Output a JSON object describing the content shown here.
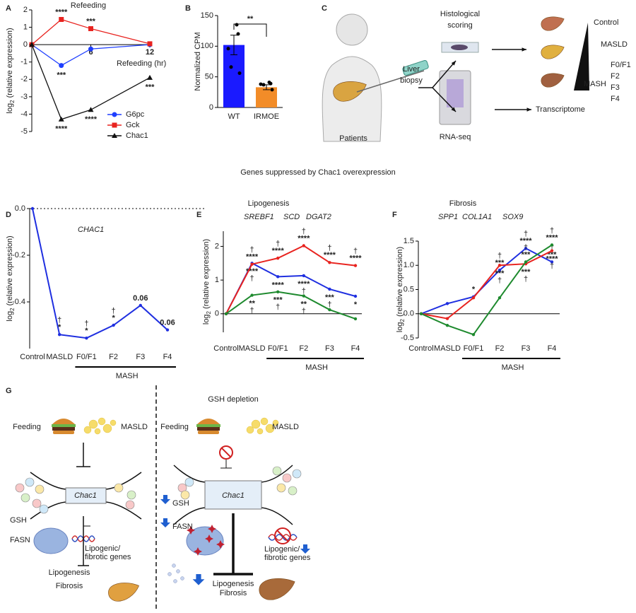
{
  "panel_labels": [
    "A",
    "B",
    "C",
    "D",
    "E",
    "F",
    "G"
  ],
  "section_title": "Genes suppressed by Chac1 overexpression",
  "chart_data": [
    {
      "type": "line",
      "title": "Refeeding",
      "ylabel": {
        "base": "log",
        "sub": "2",
        "rest": " (relative expression)"
      },
      "xlabel": "Refeeding (hr)",
      "x": [
        0,
        3,
        6,
        12
      ],
      "xlim": [
        0,
        12
      ],
      "xticks": [
        6,
        12
      ],
      "ylim": [
        -5,
        2
      ],
      "yticks": [
        2,
        1,
        0,
        -1,
        -2,
        -3,
        -4,
        -5
      ],
      "legend": "lower right",
      "series": [
        {
          "name": "G6pc",
          "color": "#1f3fff",
          "marker": "circle",
          "values": [
            0,
            -1.2,
            -0.25,
            0
          ],
          "sig": [
            null,
            "***",
            null,
            null
          ]
        },
        {
          "name": "Gck",
          "color": "#e8231f",
          "marker": "square",
          "values": [
            0,
            1.45,
            0.92,
            0.05
          ],
          "sig": [
            null,
            "****",
            "***",
            null
          ]
        },
        {
          "name": "Chac1",
          "color": "#111111",
          "marker": "triangle",
          "values": [
            0,
            -4.3,
            -3.75,
            -1.9
          ],
          "sig": [
            null,
            "****",
            "****",
            "***"
          ]
        }
      ]
    },
    {
      "type": "bar",
      "ylabel": "Normalized CPM",
      "categories": [
        "WT",
        "IRMOE"
      ],
      "values": [
        102,
        33
      ],
      "errors": [
        16,
        4
      ],
      "colors": [
        "#1a1aff",
        "#f28c28"
      ],
      "points": [
        [
          135,
          120,
          96,
          66,
          56
        ],
        [
          41,
          39,
          38,
          37,
          29
        ]
      ],
      "ylim": [
        0,
        150
      ],
      "yticks": [
        0,
        50,
        100,
        150
      ],
      "sig": "**"
    },
    {
      "type": "line",
      "ylabel": {
        "base": "log",
        "sub": "2",
        "rest": " (relative expression)"
      },
      "categories": [
        "Control",
        "MASLD",
        "F0/F1",
        "F2",
        "F3",
        "F4"
      ],
      "group_label": "MASH",
      "ylim": [
        -0.6,
        0
      ],
      "yticks": [
        {
          "value": 0,
          "label": "0.0"
        },
        -0.2,
        -0.4
      ],
      "series": [
        {
          "name": "CHAC1",
          "color": "#1f2fe0",
          "values": [
            0,
            -0.54,
            -0.555,
            -0.5,
            -0.415,
            -0.52
          ],
          "sig": [
            null,
            "*",
            "*",
            "*",
            "0.06",
            "0.06"
          ],
          "dagger": [
            null,
            "†",
            "†",
            "†",
            null,
            null
          ]
        }
      ]
    },
    {
      "type": "line",
      "title": "Lipogenesis",
      "ylabel": {
        "base": "log",
        "sub": "2",
        "rest": " (relative expression)"
      },
      "categories": [
        "Control",
        "MASLD",
        "F0/F1",
        "F2",
        "F3",
        "F4"
      ],
      "group_label": "MASH",
      "ylim": [
        -0.55,
        2.45
      ],
      "yticks": [
        0,
        1,
        2
      ],
      "series": [
        {
          "name": "SREBF1",
          "color": "#1f2fe0",
          "values": [
            0,
            1.5,
            1.1,
            1.13,
            0.73,
            0.52
          ],
          "sig": [
            null,
            "****",
            "****",
            "****",
            "***",
            "*"
          ],
          "dagger": [
            null,
            "†",
            null,
            "†",
            "†",
            null
          ]
        },
        {
          "name": "SCD",
          "color": "#e8231f",
          "values": [
            0,
            1.47,
            1.65,
            2.02,
            1.52,
            1.43
          ],
          "sig": [
            null,
            "****",
            "****",
            "****",
            "****",
            "****"
          ],
          "dagger": [
            null,
            "†",
            "†",
            "†",
            "†",
            "†"
          ]
        },
        {
          "name": "DGAT2",
          "color": "#1e8a2e",
          "values": [
            0,
            0.55,
            0.65,
            0.53,
            0.12,
            -0.15
          ],
          "sig": [
            null,
            "**",
            "***",
            "**",
            null,
            null
          ],
          "dagger": [
            null,
            "†",
            "†",
            "†",
            null,
            null
          ]
        }
      ]
    },
    {
      "type": "line",
      "title": "Fibrosis",
      "ylabel": {
        "base": "log",
        "sub": "2",
        "rest": " (relative expression)"
      },
      "categories": [
        "Control",
        "MASLD",
        "F0/F1",
        "F2",
        "F3",
        "F4"
      ],
      "group_label": "MASH",
      "ylim": [
        -0.5,
        1.5
      ],
      "yticks": [
        -0.5,
        {
          "value": 0,
          "label": "0.0"
        },
        0.5,
        {
          "value": 1,
          "label": "1.0"
        },
        1.5
      ],
      "series": [
        {
          "name": "SPP1",
          "color": "#1f2fe0",
          "values": [
            0,
            0.21,
            0.35,
            0.9,
            1.35,
            1.07
          ],
          "sig": [
            null,
            null,
            "*",
            "***",
            "****",
            "***"
          ],
          "dagger": [
            null,
            null,
            null,
            "†",
            "†",
            "†"
          ]
        },
        {
          "name": "COL1A1",
          "color": "#e8231f",
          "values": [
            0,
            -0.1,
            0.33,
            1.0,
            1.03,
            1.3
          ],
          "sig": [
            null,
            null,
            null,
            "***",
            "***",
            "****"
          ],
          "dagger": [
            null,
            null,
            null,
            "†",
            "†",
            "†"
          ]
        },
        {
          "name": "SOX9",
          "color": "#1e8a2e",
          "values": [
            0,
            -0.24,
            -0.43,
            0.33,
            1.07,
            1.42
          ],
          "sig": [
            null,
            null,
            null,
            null,
            "***",
            "****"
          ],
          "dagger": [
            null,
            null,
            null,
            null,
            "†",
            "†"
          ]
        }
      ]
    }
  ],
  "diagram_c": {
    "biopsy": [
      "Liver",
      "biopsy"
    ],
    "scoring": [
      "Histological",
      "scoring"
    ],
    "patients": "Patients",
    "rnaseq": "RNA-seq",
    "transcriptome": "Transcriptome",
    "stages": [
      "Control",
      "MASLD",
      "MASH"
    ],
    "fibrosis": [
      "F0/F1",
      "F2",
      "F3",
      "F4"
    ]
  },
  "diagram_g": {
    "title": "GSH depletion",
    "normal": {
      "feeding": "Feeding",
      "masld": "MASLD",
      "gene": "Chac1",
      "gsh": "GSH",
      "fasn": "FASN",
      "targets": [
        "Lipogenic/",
        "fibrotic genes"
      ],
      "outcome": [
        "Lipogenesis",
        "Fibrosis"
      ]
    },
    "depleted": {
      "feeding": "Feeding",
      "masld": "MASLD",
      "gene": "Chac1",
      "gsh": "GSH",
      "fasn": "FASN",
      "targets": [
        "Lipogenic/",
        "fibrotic genes"
      ],
      "outcome": [
        "Lipogenesis",
        "Fibrosis"
      ]
    }
  }
}
